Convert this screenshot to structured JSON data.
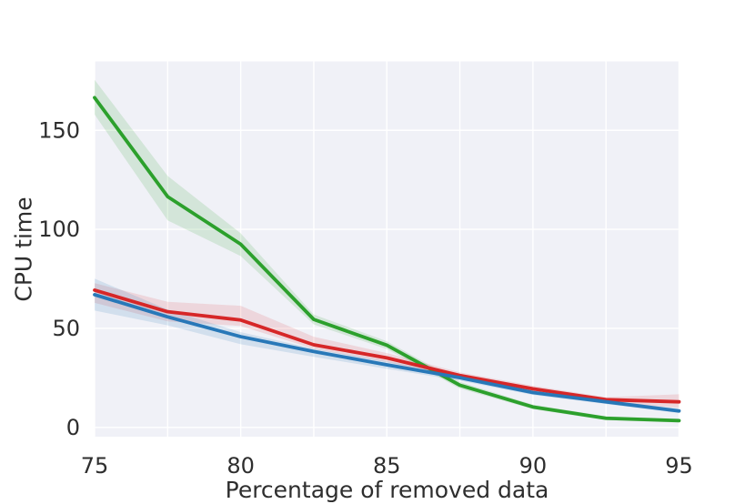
{
  "chart_data": {
    "type": "line",
    "title": "",
    "xlabel": "Percentage of removed data",
    "ylabel": "CPU time",
    "x": [
      75,
      77.5,
      80,
      82.5,
      85,
      87.5,
      90,
      92.5,
      95
    ],
    "series": [
      {
        "name": "green",
        "color": "#2ca02c",
        "band_alpha": 0.15,
        "values": [
          166.5,
          116.5,
          92.5,
          54.5,
          41.5,
          21.3,
          10.3,
          4.6,
          3.4
        ],
        "band_upper": [
          175.5,
          127.0,
          98.0,
          57.0,
          43.5,
          23.0,
          11.5,
          5.6,
          4.4
        ],
        "band_lower": [
          158.0,
          104.5,
          86.5,
          52.0,
          39.5,
          19.6,
          9.2,
          3.6,
          2.4
        ]
      },
      {
        "name": "red",
        "color": "#d62728",
        "band_alpha": 0.13,
        "values": [
          69.3,
          58.4,
          54.2,
          41.7,
          35.1,
          26.2,
          19.5,
          14.0,
          12.9
        ],
        "band_upper": [
          72.8,
          63.4,
          61.4,
          45.8,
          37.5,
          27.8,
          21.0,
          15.2,
          16.7
        ],
        "band_lower": [
          62.9,
          53.5,
          51.2,
          39.7,
          33.0,
          24.7,
          18.0,
          12.9,
          9.8
        ]
      },
      {
        "name": "blue",
        "color": "#2878b8",
        "band_alpha": 0.15,
        "values": [
          67.0,
          55.8,
          45.8,
          38.3,
          31.6,
          25.1,
          17.6,
          12.9,
          8.3
        ],
        "band_upper": [
          75.1,
          59.5,
          48.1,
          39.8,
          33.5,
          26.5,
          19.0,
          13.9,
          9.4
        ],
        "band_lower": [
          59.0,
          51.5,
          42.0,
          35.6,
          29.6,
          23.6,
          16.4,
          11.8,
          7.2
        ]
      }
    ],
    "xticks": {
      "values": [
        75,
        80,
        85,
        90,
        95
      ],
      "labels": [
        "75",
        "80",
        "85",
        "90",
        "95"
      ]
    },
    "yticks": {
      "values": [
        0,
        50,
        100,
        150
      ],
      "labels": [
        "0",
        "50",
        "100",
        "150"
      ]
    },
    "xlim": [
      75,
      95
    ],
    "ylim": [
      -4.7,
      184.8
    ],
    "grid": {
      "show": true,
      "color": "#ffffff",
      "x_step": 2.5,
      "y_step": 50
    },
    "plot_background": "#f0f1f7",
    "figure_background": "#ffffff",
    "tick_color": "#2e2e2e",
    "label_color": "#2e2e2e",
    "legend": "none",
    "line_width": 3.8
  }
}
